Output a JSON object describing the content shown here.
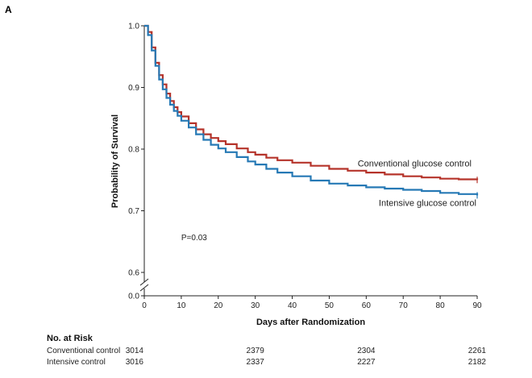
{
  "panel_label": "A",
  "chart_data": {
    "type": "line",
    "title": "",
    "xlabel": "Days after Randomization",
    "ylabel": "Probability of Survival",
    "xlim": [
      0,
      90
    ],
    "ylim": [
      0.6,
      1.0
    ],
    "y_break_value": 0.0,
    "x_ticks": [
      0,
      10,
      20,
      30,
      40,
      50,
      60,
      70,
      80,
      90
    ],
    "y_ticks": [
      0.6,
      0.7,
      0.8,
      0.9,
      1.0
    ],
    "y_tick_labels": [
      "0.6",
      "0.7",
      "0.8",
      "0.9",
      "1.0"
    ],
    "y_break_label": "0.0",
    "grid": false,
    "series": [
      {
        "name": "Conventional glucose control",
        "color": "#b5332a",
        "x": [
          0,
          1,
          2,
          3,
          4,
          5,
          6,
          7,
          8,
          9,
          10,
          12,
          14,
          16,
          18,
          20,
          22,
          25,
          28,
          30,
          33,
          36,
          40,
          45,
          50,
          55,
          60,
          65,
          70,
          75,
          80,
          85,
          90
        ],
        "y": [
          1.0,
          0.99,
          0.965,
          0.94,
          0.92,
          0.905,
          0.89,
          0.878,
          0.868,
          0.86,
          0.853,
          0.842,
          0.832,
          0.824,
          0.818,
          0.813,
          0.808,
          0.801,
          0.795,
          0.791,
          0.786,
          0.782,
          0.778,
          0.773,
          0.768,
          0.765,
          0.762,
          0.759,
          0.756,
          0.754,
          0.752,
          0.751,
          0.75
        ]
      },
      {
        "name": "Intensive glucose control",
        "color": "#2679b5",
        "x": [
          0,
          1,
          2,
          3,
          4,
          5,
          6,
          7,
          8,
          9,
          10,
          12,
          14,
          16,
          18,
          20,
          22,
          25,
          28,
          30,
          33,
          36,
          40,
          45,
          50,
          55,
          60,
          65,
          70,
          75,
          80,
          85,
          90
        ],
        "y": [
          1.0,
          0.985,
          0.96,
          0.935,
          0.913,
          0.897,
          0.883,
          0.872,
          0.862,
          0.854,
          0.846,
          0.835,
          0.824,
          0.815,
          0.807,
          0.801,
          0.795,
          0.787,
          0.78,
          0.775,
          0.768,
          0.762,
          0.756,
          0.749,
          0.744,
          0.741,
          0.738,
          0.736,
          0.734,
          0.732,
          0.729,
          0.727,
          0.725
        ]
      }
    ],
    "annotations": [
      {
        "text": "Conventional glucose control",
        "series": 0
      },
      {
        "text": "Intensive glucose control",
        "series": 1
      },
      {
        "text": "P=0.03",
        "x": 10,
        "y": 0.652
      }
    ]
  },
  "risk_table": {
    "title": "No. at Risk",
    "days": [
      0,
      30,
      60,
      90
    ],
    "rows": [
      {
        "label": "Conventional control",
        "counts": [
          "3014",
          "2379",
          "2304",
          "2261"
        ]
      },
      {
        "label": "Intensive control",
        "counts": [
          "3016",
          "2337",
          "2227",
          "2182"
        ]
      }
    ]
  }
}
